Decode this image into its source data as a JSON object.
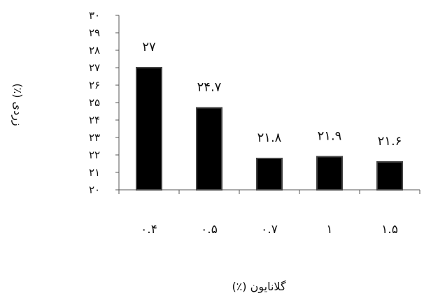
{
  "chart_data": {
    "type": "bar",
    "categories": [
      "۰.۴",
      "۰.۵",
      "۰.۷",
      "۱",
      "۱.۵"
    ],
    "values": [
      27,
      24.7,
      21.8,
      21.9,
      21.6
    ],
    "data_labels": [
      "۲۷",
      "۲۴.۷",
      "۲۱.۸",
      "۲۱.۹",
      "۲۱.۶"
    ],
    "y_ticks": [
      "۲۰",
      "۲۱",
      "۲۲",
      "۲۳",
      "۲۴",
      "۲۵",
      "۲۶",
      "۲۷",
      "۲۸",
      "۲۹",
      "۳۰"
    ],
    "ylim": [
      20,
      30
    ],
    "xlabel": "گلانایون (٪)",
    "ylabel": "زردی (٪)",
    "grid": false,
    "bar_color": "#000000",
    "bar_edge_color": "#444444"
  }
}
